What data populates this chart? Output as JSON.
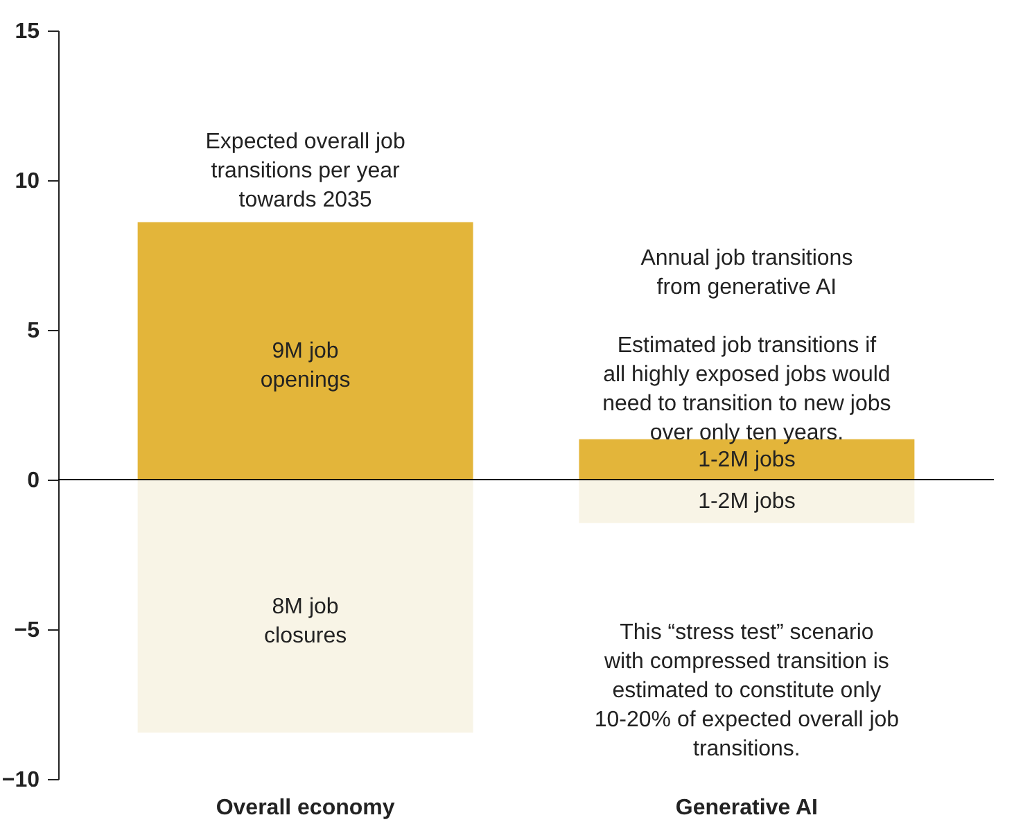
{
  "chart_data": {
    "type": "bar",
    "stacked": true,
    "categories": [
      "Overall economy",
      "Generative AI"
    ],
    "series": [
      {
        "color": "#e3b53a",
        "values": [
          8.6,
          1.35
        ]
      },
      {
        "color": "#f8f4e6",
        "values": [
          -8.45,
          -1.45
        ]
      }
    ],
    "ylim": [
      -10,
      15
    ],
    "yticks": [
      -10,
      -5,
      0,
      5,
      10,
      15
    ],
    "grid": false,
    "ref_lines": [
      {
        "axis": "y",
        "value": 0,
        "color": "#000000"
      }
    ],
    "annotations": [
      "Expected overall job transitions per year towards 2035",
      "Annual job transitions from generative AI",
      "Estimated job transitions if all highly exposed jobs would need to transition to new jobs over only ten years.",
      "This “stress test” scenario with compressed transition is estimated to constitute only 10-20% of expected overall job transitions.",
      "9M job openings",
      "1-2M jobs",
      "8M job closures",
      "1-2M jobs"
    ]
  }
}
